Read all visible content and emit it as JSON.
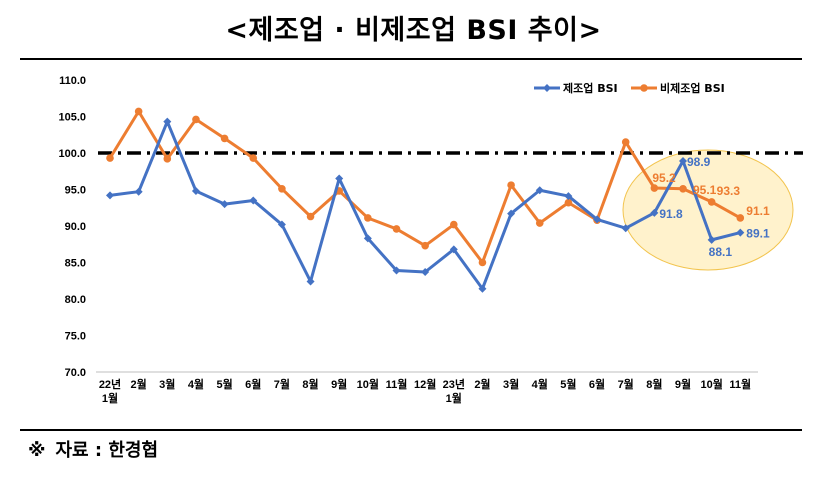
{
  "title": "<제조업 · 비제조업 BSI 추이>",
  "source": {
    "mark": "※",
    "text": "자료 : 한경협"
  },
  "colors": {
    "manufacturing": "#4472C4",
    "non_manufacturing": "#ED7D31",
    "reference": "#000000",
    "highlight_fill": "#FFF2CC",
    "highlight_stroke": "#F2C44E"
  },
  "chart_data": {
    "type": "line",
    "title": "<제조업 · 비제조업 BSI 추이>",
    "categories": [
      "22년\n1월",
      "2월",
      "3월",
      "4월",
      "5월",
      "6월",
      "7월",
      "8월",
      "9월",
      "10월",
      "11월",
      "12월",
      "23년\n1월",
      "2월",
      "3월",
      "4월",
      "5월",
      "6월",
      "7월",
      "8월",
      "9월",
      "10월",
      "11월"
    ],
    "ylim": [
      70,
      110
    ],
    "yticks": [
      "110.0",
      "105.0",
      "100.0",
      "95.0",
      "90.0",
      "85.0",
      "80.0",
      "75.0",
      "70.0"
    ],
    "reference_line": 100,
    "legend": "top-right",
    "series": [
      {
        "name": "제조업 BSI",
        "color": "#4472C4",
        "values": [
          94.2,
          94.7,
          104.3,
          94.8,
          93.0,
          93.5,
          90.2,
          82.4,
          96.5,
          88.3,
          83.9,
          83.7,
          86.8,
          81.4,
          91.7,
          94.9,
          94.1,
          90.9,
          89.7,
          91.8,
          98.9,
          88.1,
          89.1
        ],
        "labels": {
          "19": "91.8",
          "20": "98.9",
          "21": "88.1",
          "22": "89.1"
        }
      },
      {
        "name": "비제조업 BSI",
        "color": "#ED7D31",
        "values": [
          99.3,
          105.7,
          99.2,
          104.6,
          102.0,
          99.3,
          95.1,
          91.3,
          94.8,
          91.1,
          89.6,
          87.3,
          90.2,
          85.0,
          95.6,
          90.4,
          93.2,
          90.8,
          101.5,
          95.2,
          95.1,
          93.3,
          91.1
        ],
        "labels": {
          "19": "95.2",
          "20": "95.1",
          "21": "93.3",
          "22": "91.1"
        }
      }
    ]
  }
}
